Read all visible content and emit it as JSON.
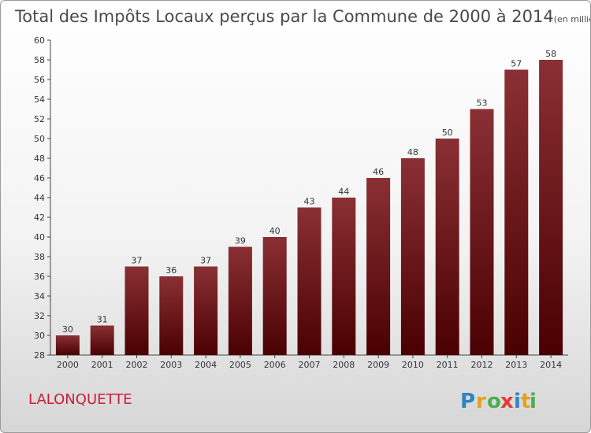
{
  "chart_data": {
    "type": "bar",
    "title": "Total des Impôts Locaux perçus par la Commune de 2000 à 2014",
    "unit_label": "(en milliers d'€)",
    "categories": [
      "2000",
      "2001",
      "2002",
      "2003",
      "2004",
      "2005",
      "2006",
      "2007",
      "2008",
      "2009",
      "2010",
      "2011",
      "2012",
      "2013",
      "2014"
    ],
    "values": [
      30,
      31,
      37,
      36,
      37,
      39,
      40,
      43,
      44,
      46,
      48,
      50,
      53,
      57,
      58
    ],
    "ylim": [
      28,
      60
    ],
    "yticks": [
      28,
      30,
      32,
      34,
      36,
      38,
      40,
      42,
      44,
      46,
      48,
      50,
      52,
      54,
      56,
      58,
      60
    ],
    "xlabel": "",
    "ylabel": "",
    "grid": false,
    "bar_color_top": "#8a3034",
    "bar_color_bottom": "#4a0002"
  },
  "commune_name": "LALONQUETTE",
  "logo": {
    "letters": [
      "P",
      "r",
      "o",
      "x",
      "i",
      "t",
      "i"
    ],
    "colors": [
      "#2e86c1",
      "#e8a020",
      "#4caf50",
      "#e53935",
      "#2e86c1",
      "#e8a020",
      "#4caf50"
    ]
  }
}
